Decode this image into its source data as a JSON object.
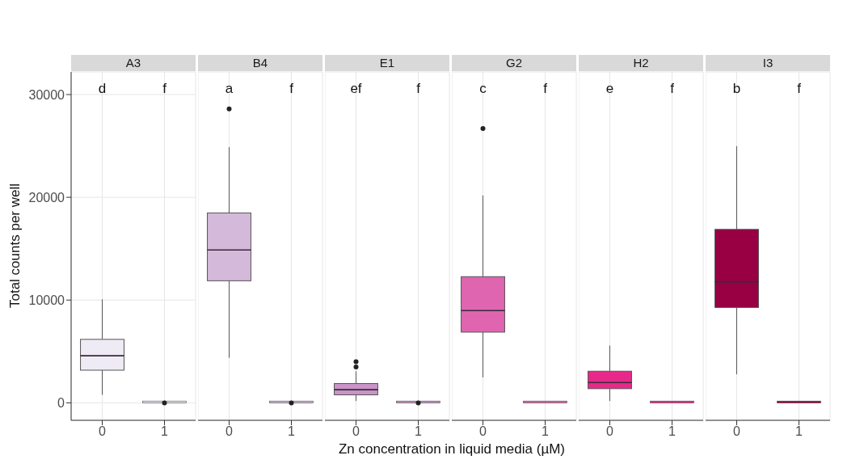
{
  "chart_data": [
    {
      "type": "box",
      "title": "A3",
      "ylabel": "Total counts per well",
      "categories": [
        "0",
        "1"
      ],
      "colors": [
        "#efebf4",
        "#efebf4"
      ],
      "ylim": [
        -1700,
        32200
      ],
      "yticks": [
        0,
        10000,
        20000,
        30000
      ],
      "grid": true,
      "boxes": [
        {
          "low": 700,
          "q1": 3100,
          "median": 4500,
          "q3": 6100,
          "high": 10000
        },
        {
          "low": 0,
          "q1": 0,
          "median": 0,
          "q3": 0,
          "high": 0,
          "outliers": [
            0
          ]
        }
      ],
      "annotations": [
        "d",
        "f"
      ]
    },
    {
      "type": "box",
      "title": "B4",
      "categories": [
        "0",
        "1"
      ],
      "colors": [
        "#d4b9da",
        "#d4b9da"
      ],
      "ylim": [
        -1700,
        32200
      ],
      "yticks": [
        0,
        10000,
        20000,
        30000
      ],
      "grid": true,
      "tick_labels": "x",
      "boxes": [
        {
          "low": 4300,
          "q1": 11800,
          "median": 14800,
          "q3": 18400,
          "high": 24800,
          "outliers": [
            28600
          ]
        },
        {
          "low": 0,
          "q1": 0,
          "median": 0,
          "q3": 0,
          "high": 0,
          "outliers": [
            0
          ]
        }
      ],
      "annotations": [
        "a",
        "f"
      ]
    },
    {
      "type": "box",
      "title": "E1",
      "xlabel": "Zn concentration in liquid media (µM)",
      "categories": [
        "0",
        "1"
      ],
      "colors": [
        "#c994c7",
        "#c994c7"
      ],
      "ylim": [
        -1700,
        32200
      ],
      "yticks": [
        0,
        10000,
        20000,
        30000
      ],
      "grid": true,
      "tick_labels": "x",
      "boxes": [
        {
          "low": 100,
          "q1": 700,
          "median": 1200,
          "q3": 1800,
          "high": 3000,
          "outliers": [
            3500,
            4000
          ]
        },
        {
          "low": 0,
          "q1": 0,
          "median": 0,
          "q3": 0,
          "high": 0,
          "outliers": [
            0
          ]
        }
      ],
      "annotations": [
        "ef",
        "f"
      ]
    },
    {
      "type": "box",
      "title": "G2",
      "categories": [
        "0",
        "1"
      ],
      "colors": [
        "#df65b0",
        "#df65b0"
      ],
      "ylim": [
        -1700,
        32200
      ],
      "yticks": [
        0,
        10000,
        20000,
        30000
      ],
      "grid": true,
      "tick_labels": "x",
      "boxes": [
        {
          "low": 2400,
          "q1": 6800,
          "median": 8900,
          "q3": 12200,
          "high": 20100,
          "outliers": [
            26700
          ]
        },
        {
          "low": 0,
          "q1": 0,
          "median": 0,
          "q3": 0,
          "high": 0
        }
      ],
      "annotations": [
        "c",
        "f"
      ]
    },
    {
      "type": "box",
      "title": "H2",
      "categories": [
        "0",
        "1"
      ],
      "colors": [
        "#e7298a",
        "#e7298a"
      ],
      "ylim": [
        -1700,
        32200
      ],
      "yticks": [
        0,
        10000,
        20000,
        30000
      ],
      "grid": true,
      "tick_labels": "x",
      "boxes": [
        {
          "low": 100,
          "q1": 1300,
          "median": 1900,
          "q3": 3000,
          "high": 5500
        },
        {
          "low": 0,
          "q1": 0,
          "median": 0,
          "q3": 0,
          "high": 0
        }
      ],
      "annotations": [
        "e",
        "f"
      ]
    },
    {
      "type": "box",
      "title": "I3",
      "categories": [
        "0",
        "1"
      ],
      "colors": [
        "#980043",
        "#980043"
      ],
      "ylim": [
        -1700,
        32200
      ],
      "yticks": [
        0,
        10000,
        20000,
        30000
      ],
      "grid": true,
      "tick_labels": "x",
      "boxes": [
        {
          "low": 2700,
          "q1": 9200,
          "median": 11700,
          "q3": 16800,
          "high": 24900
        },
        {
          "low": 0,
          "q1": 0,
          "median": 0,
          "q3": 0,
          "high": 0
        }
      ],
      "annotations": [
        "b",
        "f"
      ]
    }
  ]
}
